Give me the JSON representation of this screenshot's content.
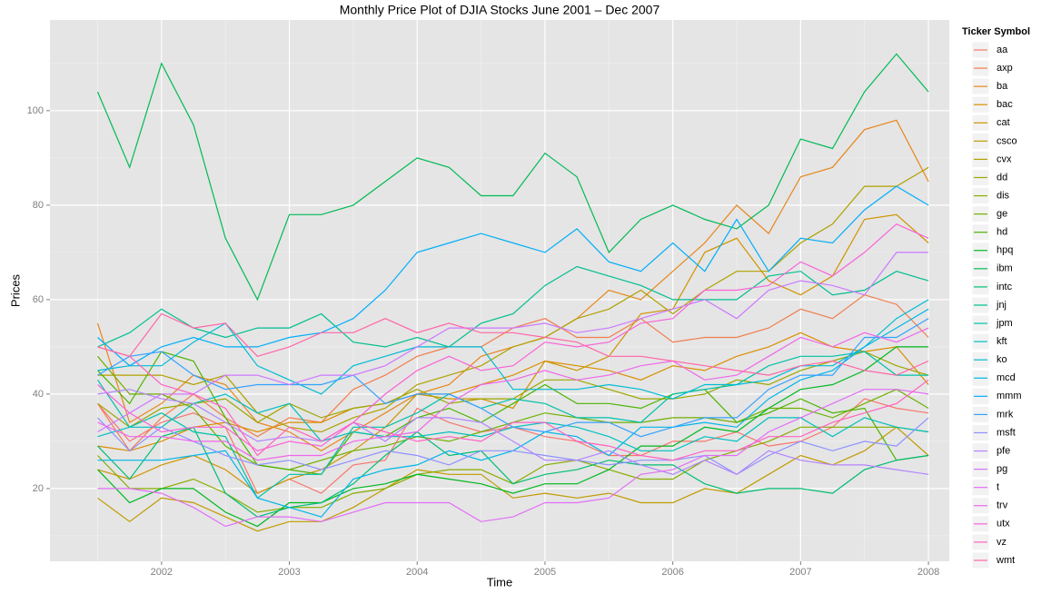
{
  "chart_data": {
    "type": "line",
    "title": "Monthly Price Plot of DJIA Stocks June 2001 – Dec 2007",
    "x_label": "Time",
    "y_label": "Prices",
    "legend_title": "Ticker Symbol",
    "legend": "right",
    "grid": true,
    "xlim": [
      2001.127,
      2008.163
    ],
    "xticks": [
      2002,
      2003,
      2004,
      2005,
      2006,
      2007,
      2008
    ],
    "ylim": [
      4.6,
      119.2
    ],
    "yticks": [
      20,
      40,
      60,
      80,
      100
    ],
    "x": [
      2001.5,
      2001.75,
      2002.0,
      2002.25,
      2002.5,
      2002.75,
      2003.0,
      2003.25,
      2003.5,
      2003.75,
      2004.0,
      2004.25,
      2004.5,
      2004.75,
      2005.0,
      2005.25,
      2005.5,
      2005.75,
      2006.0,
      2006.25,
      2006.5,
      2006.75,
      2007.0,
      2007.25,
      2007.5,
      2007.75,
      2008.0
    ],
    "series": [
      {
        "name": "aa",
        "color": "#F8766D",
        "values": [
          38,
          30,
          34,
          36,
          33,
          19,
          22,
          19,
          25,
          26,
          37,
          34,
          32,
          33,
          31,
          30,
          27,
          27,
          30,
          30,
          32,
          29,
          30,
          33,
          39,
          37,
          36
        ]
      },
      {
        "name": "axp",
        "color": "#F07E4E",
        "values": [
          38,
          28,
          35,
          40,
          35,
          31,
          35,
          34,
          41,
          44,
          48,
          50,
          50,
          54,
          56,
          52,
          52,
          56,
          51,
          52,
          52,
          54,
          58,
          56,
          61,
          59,
          52
        ]
      },
      {
        "name": "ba",
        "color": "#E7861B",
        "values": [
          55,
          34,
          38,
          44,
          42,
          34,
          32,
          28,
          32,
          36,
          40,
          42,
          48,
          50,
          52,
          56,
          62,
          60,
          66,
          72,
          80,
          74,
          86,
          88,
          96,
          98,
          85
        ]
      },
      {
        "name": "bac",
        "color": "#DB8E00",
        "values": [
          29,
          28,
          30,
          33,
          34,
          32,
          34,
          34,
          37,
          38,
          40,
          40,
          42,
          44,
          47,
          46,
          45,
          43,
          46,
          45,
          48,
          50,
          53,
          50,
          49,
          50,
          42
        ]
      },
      {
        "name": "cat",
        "color": "#CF9400",
        "values": [
          24,
          22,
          25,
          27,
          24,
          19,
          22,
          24,
          28,
          33,
          40,
          39,
          39,
          37,
          47,
          45,
          48,
          57,
          58,
          70,
          73,
          64,
          61,
          65,
          77,
          78,
          72
        ]
      },
      {
        "name": "csco",
        "color": "#C09B00",
        "values": [
          18,
          13,
          18,
          17,
          14,
          11,
          13,
          13,
          16,
          20,
          24,
          23,
          23,
          18,
          19,
          18,
          19,
          17,
          17,
          20,
          19,
          23,
          27,
          25,
          28,
          33,
          27
        ]
      },
      {
        "name": "cvx",
        "color": "#AFA100",
        "values": [
          44,
          44,
          44,
          42,
          44,
          36,
          33,
          32,
          35,
          37,
          42,
          44,
          46,
          50,
          52,
          56,
          58,
          62,
          57,
          62,
          66,
          66,
          72,
          76,
          84,
          84,
          88
        ]
      },
      {
        "name": "dd",
        "color": "#9DA700",
        "values": [
          38,
          33,
          37,
          38,
          39,
          34,
          38,
          35,
          37,
          38,
          41,
          38,
          39,
          39,
          43,
          43,
          41,
          39,
          39,
          40,
          43,
          42,
          45,
          47,
          49,
          46,
          44
        ]
      },
      {
        "name": "dis",
        "color": "#88AC00",
        "values": [
          27,
          20,
          20,
          22,
          19,
          15,
          16,
          16,
          19,
          20,
          23,
          24,
          24,
          21,
          25,
          26,
          24,
          22,
          22,
          26,
          28,
          30,
          33,
          33,
          33,
          33,
          32
        ]
      },
      {
        "name": "ge",
        "color": "#6FB000",
        "values": [
          48,
          40,
          40,
          37,
          29,
          25,
          24,
          26,
          28,
          29,
          31,
          30,
          32,
          34,
          36,
          35,
          34,
          34,
          35,
          35,
          34,
          37,
          37,
          35,
          38,
          41,
          37
        ]
      },
      {
        "name": "hd",
        "color": "#4CB400",
        "values": [
          45,
          38,
          49,
          47,
          35,
          25,
          24,
          23,
          32,
          31,
          35,
          37,
          34,
          38,
          42,
          38,
          38,
          37,
          40,
          41,
          34,
          36,
          39,
          36,
          37,
          26,
          27
        ]
      },
      {
        "name": "hpq",
        "color": "#00B81F",
        "values": [
          24,
          17,
          20,
          20,
          15,
          12,
          17,
          17,
          20,
          21,
          23,
          22,
          21,
          19,
          21,
          21,
          24,
          29,
          29,
          33,
          32,
          37,
          41,
          42,
          45,
          50,
          50
        ]
      },
      {
        "name": "ibm",
        "color": "#00BA54",
        "values": [
          104,
          88,
          110,
          97,
          73,
          60,
          78,
          78,
          80,
          85,
          90,
          88,
          82,
          82,
          91,
          86,
          70,
          77,
          80,
          77,
          75,
          80,
          94,
          92,
          104,
          112,
          104
        ]
      },
      {
        "name": "intc",
        "color": "#00BD74",
        "values": [
          29,
          22,
          31,
          33,
          19,
          14,
          16,
          17,
          21,
          27,
          32,
          27,
          28,
          21,
          23,
          24,
          26,
          25,
          25,
          21,
          19,
          20,
          20,
          19,
          24,
          26,
          27
        ]
      },
      {
        "name": "jnj",
        "color": "#00BF8F",
        "values": [
          50,
          53,
          58,
          54,
          52,
          54,
          54,
          57,
          51,
          50,
          52,
          50,
          55,
          57,
          63,
          67,
          65,
          63,
          60,
          60,
          60,
          65,
          66,
          61,
          62,
          66,
          64
        ]
      },
      {
        "name": "jpm",
        "color": "#00C1A8",
        "values": [
          43,
          33,
          36,
          32,
          31,
          18,
          23,
          23,
          33,
          33,
          36,
          40,
          37,
          39,
          38,
          35,
          35,
          34,
          40,
          41,
          42,
          46,
          48,
          48,
          49,
          44,
          44
        ]
      },
      {
        "name": "kft",
        "color": "#00C0BF",
        "values": [
          31,
          33,
          33,
          38,
          40,
          36,
          38,
          30,
          32,
          31,
          31,
          32,
          31,
          33,
          34,
          33,
          31,
          28,
          28,
          31,
          30,
          35,
          35,
          31,
          35,
          33,
          32
        ]
      },
      {
        "name": "ko",
        "color": "#00BCD5",
        "values": [
          45,
          46,
          46,
          51,
          55,
          46,
          43,
          40,
          46,
          48,
          50,
          50,
          50,
          41,
          41,
          41,
          42,
          41,
          39,
          42,
          42,
          43,
          46,
          46,
          50,
          56,
          60
        ]
      },
      {
        "name": "mcd",
        "color": "#00B6E8",
        "values": [
          26,
          26,
          26,
          27,
          28,
          18,
          16,
          14,
          22,
          24,
          25,
          28,
          26,
          28,
          32,
          31,
          27,
          33,
          33,
          34,
          33,
          39,
          43,
          45,
          50,
          54,
          58
        ]
      },
      {
        "name": "mmm",
        "color": "#00AEF8",
        "values": [
          52,
          46,
          50,
          52,
          50,
          50,
          52,
          53,
          56,
          62,
          70,
          72,
          74,
          72,
          70,
          75,
          68,
          66,
          72,
          66,
          77,
          66,
          73,
          72,
          79,
          84,
          80
        ]
      },
      {
        "name": "mrk",
        "color": "#35A2FF",
        "values": [
          44,
          48,
          49,
          44,
          41,
          42,
          42,
          42,
          44,
          38,
          40,
          40,
          37,
          33,
          32,
          34,
          34,
          31,
          33,
          35,
          35,
          41,
          44,
          44,
          52,
          52,
          56
        ]
      },
      {
        "name": "msft",
        "color": "#8F91FF",
        "values": [
          35,
          28,
          33,
          30,
          27,
          25,
          26,
          24,
          26,
          28,
          27,
          25,
          28,
          28,
          27,
          26,
          25,
          26,
          26,
          27,
          23,
          27,
          30,
          28,
          30,
          29,
          35
        ]
      },
      {
        "name": "pfe",
        "color": "#B384FF",
        "values": [
          40,
          41,
          39,
          38,
          34,
          30,
          31,
          30,
          34,
          30,
          35,
          35,
          34,
          30,
          26,
          26,
          28,
          25,
          23,
          26,
          23,
          28,
          26,
          25,
          25,
          24,
          23
        ]
      },
      {
        "name": "pg",
        "color": "#CD78FF",
        "values": [
          32,
          36,
          40,
          40,
          44,
          44,
          42,
          44,
          44,
          46,
          50,
          54,
          54,
          54,
          55,
          53,
          54,
          56,
          58,
          60,
          56,
          62,
          64,
          63,
          61,
          70,
          70
        ]
      },
      {
        "name": "t",
        "color": "#E26EF7",
        "values": [
          20,
          20,
          19,
          16,
          12,
          14,
          14,
          13,
          15,
          17,
          17,
          17,
          13,
          14,
          17,
          17,
          18,
          23,
          24,
          27,
          27,
          32,
          35,
          38,
          41,
          41,
          40
        ]
      },
      {
        "name": "trv",
        "color": "#F066EA",
        "values": [
          34,
          31,
          31,
          30,
          30,
          26,
          27,
          27,
          30,
          31,
          32,
          38,
          42,
          43,
          45,
          43,
          44,
          46,
          47,
          43,
          44,
          48,
          52,
          50,
          53,
          51,
          54
        ]
      },
      {
        "name": "utx",
        "color": "#F963D8",
        "values": [
          42,
          36,
          32,
          33,
          33,
          28,
          30,
          29,
          34,
          40,
          45,
          48,
          45,
          46,
          51,
          50,
          51,
          55,
          56,
          62,
          62,
          63,
          68,
          65,
          70,
          76,
          73
        ]
      },
      {
        "name": "vz",
        "color": "#FF62C3",
        "values": [
          50,
          48,
          42,
          40,
          37,
          27,
          33,
          30,
          34,
          32,
          30,
          31,
          30,
          34,
          34,
          30,
          29,
          27,
          26,
          28,
          28,
          31,
          31,
          34,
          36,
          38,
          43
        ]
      },
      {
        "name": "wmt",
        "color": "#FF66A8",
        "values": [
          50,
          48,
          57,
          54,
          55,
          48,
          50,
          53,
          53,
          56,
          53,
          55,
          53,
          53,
          52,
          51,
          48,
          48,
          47,
          46,
          45,
          44,
          46,
          47,
          45,
          44,
          47
        ]
      }
    ]
  }
}
